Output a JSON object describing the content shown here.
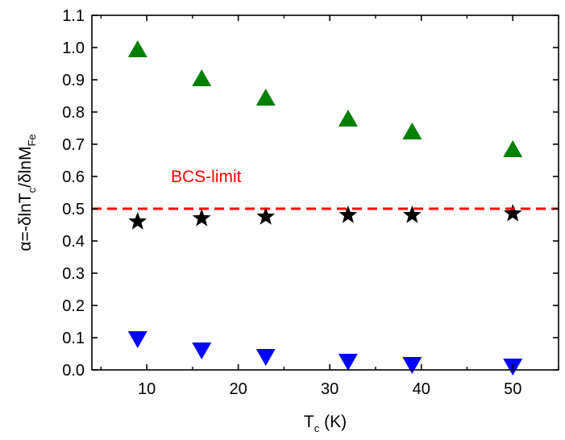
{
  "chart_data": {
    "type": "scatter",
    "title": "",
    "xlabel": {
      "main": "T",
      "sub": "c",
      "rest": " (K)"
    },
    "ylabel": {
      "p1": "α=-δlnT",
      "s1": "c",
      "p2": "/δlnM",
      "s2": "Fe"
    },
    "xlim": [
      4,
      55
    ],
    "ylim": [
      0.0,
      1.1
    ],
    "x_ticks": [
      10,
      20,
      30,
      40,
      50
    ],
    "y_ticks": [
      0.0,
      0.1,
      0.2,
      0.3,
      0.4,
      0.5,
      0.6,
      0.7,
      0.8,
      0.9,
      1.0,
      1.1
    ],
    "x_tick_labels": [
      "10",
      "20",
      "30",
      "40",
      "50"
    ],
    "y_tick_labels": [
      "0.0",
      "0.1",
      "0.2",
      "0.3",
      "0.4",
      "0.5",
      "0.6",
      "0.7",
      "0.8",
      "0.9",
      "1.0",
      "1.1"
    ],
    "grid": false,
    "series": [
      {
        "marker": "triangle-up",
        "color": "#008000",
        "x": [
          9,
          16,
          23,
          32,
          39,
          50
        ],
        "y": [
          0.99,
          0.9,
          0.84,
          0.775,
          0.735,
          0.68
        ]
      },
      {
        "marker": "star",
        "color": "#000000",
        "x": [
          9,
          16,
          23,
          32,
          39,
          50
        ],
        "y": [
          0.46,
          0.47,
          0.475,
          0.48,
          0.48,
          0.485
        ]
      },
      {
        "marker": "triangle-down",
        "color": "#0000ff",
        "x": [
          9,
          16,
          23,
          32,
          39,
          50
        ],
        "y": [
          0.1,
          0.065,
          0.045,
          0.03,
          0.02,
          0.015
        ]
      }
    ],
    "reference_line": {
      "y": 0.5,
      "style": "dashed",
      "color": "#ff0000",
      "label": "BCS-limit"
    }
  }
}
